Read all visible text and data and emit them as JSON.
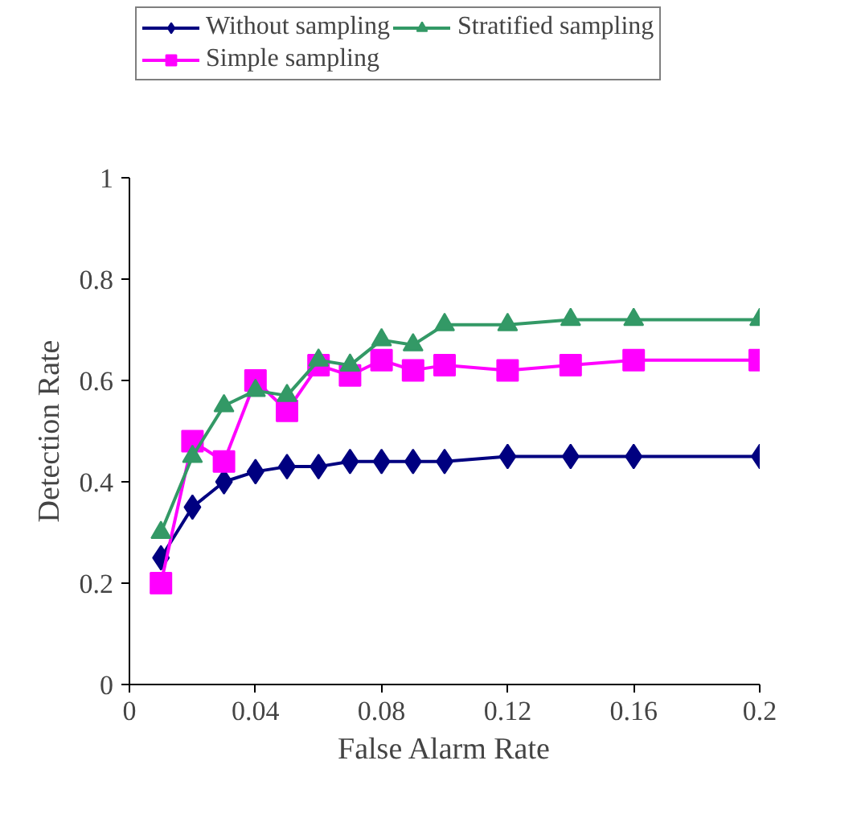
{
  "chart_data": {
    "type": "line",
    "xlabel": "False Alarm Rate",
    "ylabel": "Detection Rate",
    "x": [
      0.01,
      0.02,
      0.03,
      0.04,
      0.05,
      0.06,
      0.07,
      0.08,
      0.09,
      0.1,
      0.12,
      0.14,
      0.16,
      0.2
    ],
    "series": [
      {
        "name": "Without sampling",
        "color": "#000080",
        "marker": "diamond",
        "values": [
          0.25,
          0.35,
          0.4,
          0.42,
          0.43,
          0.43,
          0.44,
          0.44,
          0.44,
          0.44,
          0.45,
          0.45,
          0.45,
          0.45
        ]
      },
      {
        "name": "Simple sampling",
        "color": "#ff00ff",
        "marker": "square",
        "values": [
          0.2,
          0.48,
          0.44,
          0.6,
          0.54,
          0.63,
          0.61,
          0.64,
          0.62,
          0.63,
          0.62,
          0.63,
          0.64,
          0.64
        ]
      },
      {
        "name": "Stratified sampling",
        "color": "#339966",
        "marker": "triangle",
        "values": [
          0.3,
          0.45,
          0.55,
          0.58,
          0.57,
          0.64,
          0.63,
          0.68,
          0.67,
          0.71,
          0.71,
          0.72,
          0.72,
          0.72
        ]
      }
    ],
    "xlim": [
      0,
      0.2
    ],
    "xticks": [
      0,
      0.04,
      0.08,
      0.12,
      0.16,
      0.2
    ],
    "ylim": [
      0,
      1
    ],
    "yticks": [
      0,
      0.2,
      0.4,
      0.6,
      0.8,
      1
    ],
    "grid": false,
    "legend": "top",
    "line_style": "solid"
  }
}
